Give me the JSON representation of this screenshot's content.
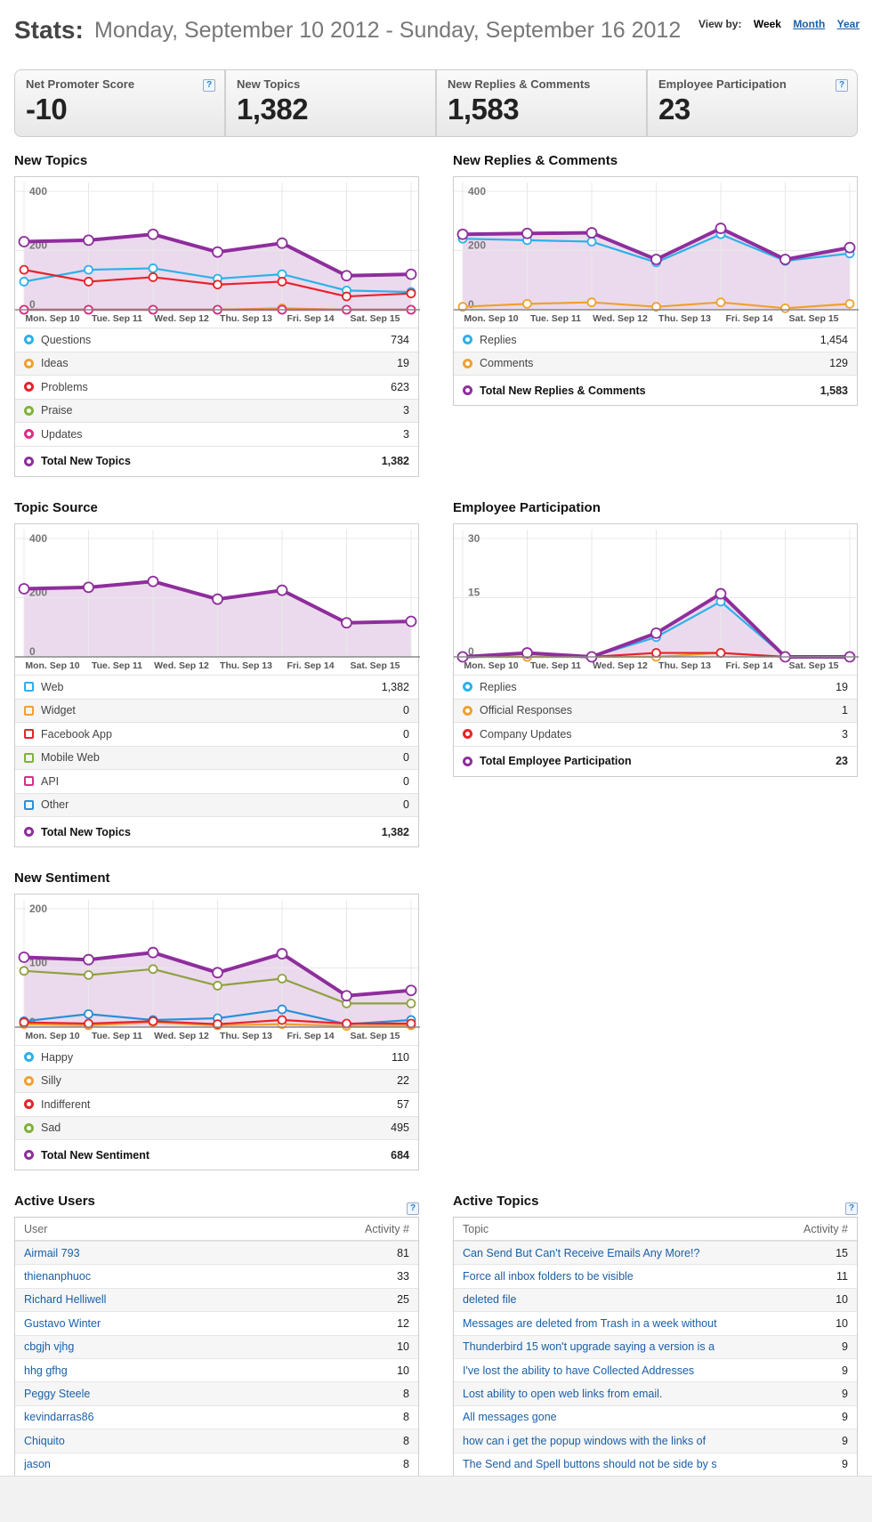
{
  "header": {
    "title": "Stats:",
    "date_range": "Monday, September 10 2012 - Sunday, September 16 2012",
    "view_by_label": "View by:",
    "view_week": "Week",
    "view_month": "Month",
    "view_year": "Year"
  },
  "summary": [
    {
      "title": "Net Promoter Score",
      "value": "-10"
    },
    {
      "title": "New Topics",
      "value": "1,382"
    },
    {
      "title": "New Replies & Comments",
      "value": "1,583"
    },
    {
      "title": "Employee Participation",
      "value": "23"
    }
  ],
  "help_glyph": "?",
  "chart_data": [
    {
      "type": "line",
      "title": "New Topics",
      "ylim": [
        0,
        400
      ],
      "yticks": [
        "400",
        "200",
        "0"
      ],
      "categories": [
        "Mon. Sep 10",
        "Tue. Sep 11",
        "Wed. Sep 12",
        "Thu. Sep 13",
        "Fri. Sep 14",
        "Sat. Sep 15",
        ""
      ],
      "series": [
        {
          "name": "Questions",
          "color": "#2cb1ea",
          "values": [
            95,
            135,
            140,
            105,
            120,
            65,
            60
          ]
        },
        {
          "name": "Ideas",
          "color": "#f0a030",
          "values": [
            0,
            0,
            0,
            0,
            5,
            0,
            0
          ]
        },
        {
          "name": "Problems",
          "color": "#e8222a",
          "values": [
            135,
            95,
            110,
            85,
            95,
            45,
            55
          ]
        },
        {
          "name": "Praise",
          "color": "#7fb23a",
          "values": [
            0,
            0,
            0,
            0,
            0,
            0,
            0
          ]
        },
        {
          "name": "Updates",
          "color": "#e02a88",
          "values": [
            0,
            0,
            0,
            0,
            0,
            0,
            0
          ]
        },
        {
          "name": "Total New Topics",
          "color": "#8e2e9c",
          "values": [
            230,
            235,
            255,
            195,
            225,
            115,
            120
          ],
          "fill": true
        }
      ],
      "legend": [
        {
          "label": "Questions",
          "value": "734"
        },
        {
          "label": "Ideas",
          "value": "19"
        },
        {
          "label": "Problems",
          "value": "623"
        },
        {
          "label": "Praise",
          "value": "3"
        },
        {
          "label": "Updates",
          "value": "3"
        }
      ],
      "total": {
        "label": "Total New Topics",
        "value": "1,382"
      }
    },
    {
      "type": "line",
      "title": "New Replies & Comments",
      "ylim": [
        0,
        400
      ],
      "yticks": [
        "400",
        "200",
        "0"
      ],
      "categories": [
        "Mon. Sep 10",
        "Tue. Sep 11",
        "Wed. Sep 12",
        "Thu. Sep 13",
        "Fri. Sep 14",
        "Sat. Sep 15",
        ""
      ],
      "series": [
        {
          "name": "Replies",
          "color": "#2cb1ea",
          "values": [
            240,
            235,
            230,
            160,
            255,
            165,
            190
          ]
        },
        {
          "name": "Comments",
          "color": "#f0a030",
          "values": [
            10,
            20,
            25,
            10,
            25,
            5,
            20
          ]
        },
        {
          "name": "Total New Replies & Comments",
          "color": "#8e2e9c",
          "values": [
            255,
            258,
            260,
            170,
            275,
            170,
            210
          ],
          "fill": true
        }
      ],
      "legend": [
        {
          "label": "Replies",
          "value": "1,454"
        },
        {
          "label": "Comments",
          "value": "129"
        }
      ],
      "total": {
        "label": "Total New Replies & Comments",
        "value": "1,583"
      }
    },
    {
      "type": "line",
      "title": "Topic Source",
      "ylim": [
        0,
        400
      ],
      "yticks": [
        "400",
        "200",
        "0"
      ],
      "categories": [
        "Mon. Sep 10",
        "Tue. Sep 11",
        "Wed. Sep 12",
        "Thu. Sep 13",
        "Fri. Sep 14",
        "Sat. Sep 15",
        ""
      ],
      "series": [
        {
          "name": "Total New Topics",
          "color": "#8e2e9c",
          "values": [
            230,
            235,
            255,
            195,
            225,
            115,
            120
          ],
          "fill": true
        }
      ],
      "legend": [
        {
          "label": "Web",
          "value": "1,382"
        },
        {
          "label": "Widget",
          "value": "0"
        },
        {
          "label": "Facebook App",
          "value": "0"
        },
        {
          "label": "Mobile Web",
          "value": "0"
        },
        {
          "label": "API",
          "value": "0"
        },
        {
          "label": "Other",
          "value": "0"
        }
      ],
      "total": {
        "label": "Total New Topics",
        "value": "1,382"
      }
    },
    {
      "type": "line",
      "title": "Employee Participation",
      "ylim": [
        0,
        30
      ],
      "yticks": [
        "30",
        "15",
        "0"
      ],
      "categories": [
        "Mon. Sep 10",
        "Tue. Sep 11",
        "Wed. Sep 12",
        "Thu. Sep 13",
        "Fri. Sep 14",
        "Sat. Sep 15",
        ""
      ],
      "series": [
        {
          "name": "Replies",
          "color": "#2cb1ea",
          "values": [
            0,
            0,
            0,
            5,
            14,
            0,
            0
          ]
        },
        {
          "name": "Official Responses",
          "color": "#f0a030",
          "values": [
            0,
            0,
            0,
            0,
            1,
            0,
            0
          ]
        },
        {
          "name": "Company Updates",
          "color": "#e8222a",
          "values": [
            0,
            1,
            0,
            1,
            1,
            0,
            0
          ]
        },
        {
          "name": "Total Employee Participation",
          "color": "#8e2e9c",
          "values": [
            0,
            1,
            0,
            6,
            16,
            0,
            0
          ],
          "fill": true
        }
      ],
      "legend": [
        {
          "label": "Replies",
          "value": "19"
        },
        {
          "label": "Official Responses",
          "value": "1"
        },
        {
          "label": "Company Updates",
          "value": "3"
        }
      ],
      "total": {
        "label": "Total Employee Participation",
        "value": "23"
      }
    },
    {
      "type": "line",
      "title": "New Sentiment",
      "ylim": [
        0,
        200
      ],
      "yticks": [
        "200",
        "100",
        "0"
      ],
      "categories": [
        "Mon. Sep 10",
        "Tue. Sep 11",
        "Wed. Sep 12",
        "Thu. Sep 13",
        "Fri. Sep 14",
        "Sat. Sep 15",
        ""
      ],
      "series": [
        {
          "name": "Happy",
          "color": "#2a8fd8",
          "values": [
            10,
            22,
            12,
            15,
            30,
            5,
            12
          ]
        },
        {
          "name": "Silly",
          "color": "#f0a030",
          "values": [
            5,
            3,
            8,
            3,
            5,
            2,
            3
          ]
        },
        {
          "name": "Indifferent",
          "color": "#e8222a",
          "values": [
            8,
            6,
            10,
            5,
            12,
            6,
            6
          ]
        },
        {
          "name": "Sad",
          "color": "#8fa040",
          "values": [
            95,
            88,
            98,
            70,
            82,
            40,
            40
          ]
        },
        {
          "name": "Total New Sentiment",
          "color": "#8e2e9c",
          "values": [
            118,
            114,
            126,
            92,
            124,
            53,
            62
          ],
          "fill": true
        }
      ],
      "legend": [
        {
          "label": "Happy",
          "value": "110"
        },
        {
          "label": "Silly",
          "value": "22"
        },
        {
          "label": "Indifferent",
          "value": "57"
        },
        {
          "label": "Sad",
          "value": "495"
        }
      ],
      "total": {
        "label": "Total New Sentiment",
        "value": "684"
      }
    }
  ],
  "legend_colors": {
    "topics": [
      "#2cb1ea",
      "#f0a030",
      "#e8222a",
      "#7fb23a",
      "#e02a88"
    ],
    "replies": [
      "#2cb1ea",
      "#f0a030"
    ],
    "source": [
      "#2cb1ea",
      "#f0a030",
      "#e8222a",
      "#7fb23a",
      "#e02a88",
      "#2a8fd8"
    ],
    "employee": [
      "#2cb1ea",
      "#f0a030",
      "#e8222a"
    ],
    "sentiment": [
      "#2cb1ea",
      "#f0a030",
      "#e8222a",
      "#7fb23a"
    ],
    "total": "#8e2e9c"
  },
  "active_users": {
    "title": "Active Users",
    "col_user": "User",
    "col_activity": "Activity #",
    "rows": [
      {
        "name": "Airmail 793",
        "count": "81"
      },
      {
        "name": "thienanphuoc",
        "count": "33"
      },
      {
        "name": "Richard Helliwell",
        "count": "25"
      },
      {
        "name": "Gustavo Winter",
        "count": "12"
      },
      {
        "name": "cbgjh vjhg",
        "count": "10"
      },
      {
        "name": "hhg gfhg",
        "count": "10"
      },
      {
        "name": "Peggy Steele",
        "count": "8"
      },
      {
        "name": "kevindarras86",
        "count": "8"
      },
      {
        "name": "Chiquito",
        "count": "8"
      },
      {
        "name": "jason",
        "count": "8"
      }
    ]
  },
  "active_topics": {
    "title": "Active Topics",
    "col_topic": "Topic",
    "col_activity": "Activity #",
    "rows": [
      {
        "name": "Can Send But Can't Receive Emails Any More!?",
        "count": "15"
      },
      {
        "name": "Force all inbox folders to be visible",
        "count": "11"
      },
      {
        "name": "deleted file",
        "count": "10"
      },
      {
        "name": "Messages are deleted from Trash in a week without",
        "count": "10"
      },
      {
        "name": "Thunderbird 15 won't upgrade saying a version is a",
        "count": "9"
      },
      {
        "name": "I've lost the ability to have Collected Addresses",
        "count": "9"
      },
      {
        "name": "Lost ability to open web links from email.",
        "count": "9"
      },
      {
        "name": "All messages gone",
        "count": "9"
      },
      {
        "name": "how can i get the popup windows with the links of",
        "count": "9"
      },
      {
        "name": "The Send and Spell buttons should not be side by s",
        "count": "9"
      }
    ]
  }
}
